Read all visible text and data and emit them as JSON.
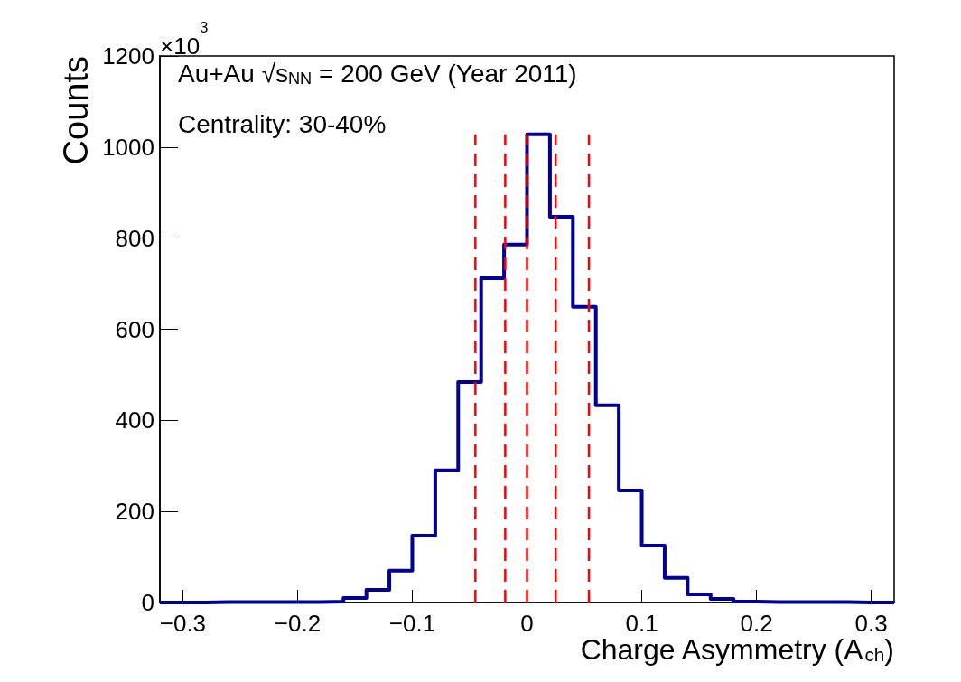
{
  "chart_data": {
    "type": "histogram",
    "xlabel": "Charge Asymmetry (A$_{ch}$)",
    "ylabel": "Counts",
    "annotations": [
      "×10$^{3}$",
      "Au+Au √s$_{NN}$ = 200 GeV (Year 2011)",
      "Centrality: 30-40%"
    ],
    "bins": [
      -0.32,
      -0.3,
      -0.28,
      -0.26,
      -0.24,
      -0.22,
      -0.2,
      -0.18,
      -0.16,
      -0.14,
      -0.12,
      -0.1,
      -0.08,
      -0.06,
      -0.04,
      -0.02,
      0,
      0.02,
      0.04,
      0.06,
      0.08,
      0.1,
      0.12,
      0.14,
      0.16,
      0.18,
      0.2,
      0.22,
      0.24,
      0.26,
      0.28,
      0.3,
      0.32
    ],
    "series": [
      {
        "color": "#000099",
        "values": [
          0,
          0,
          1,
          1,
          1,
          1,
          1,
          2,
          10,
          28,
          70,
          147,
          290,
          484,
          712,
          786,
          1028,
          847,
          649,
          433,
          246,
          125,
          54,
          18,
          8,
          2,
          1,
          1,
          1,
          1,
          0,
          0
        ]
      }
    ],
    "xlim": [
      -0.32,
      0.32
    ],
    "xticks": [
      {
        "value": -0.3,
        "label": "−0.3"
      },
      {
        "value": -0.2,
        "label": "−0.2"
      },
      {
        "value": -0.1,
        "label": "−0.1"
      },
      0,
      0.1,
      0.2,
      0.3
    ],
    "ylim": [
      0,
      1200
    ],
    "yticks": [
      0,
      200,
      400,
      600,
      800,
      1000,
      1200
    ],
    "ref_lines": [
      {
        "axis": "x",
        "value": -0.045,
        "color": "#ff0000",
        "line_style": "dashed"
      },
      {
        "axis": "x",
        "value": -0.019,
        "color": "#ff0000",
        "line_style": "dashed"
      },
      {
        "axis": "x",
        "value": 0.0,
        "color": "#ff0000",
        "line_style": "dashed"
      },
      {
        "axis": "x",
        "value": 0.025,
        "color": "#ff0000",
        "line_style": "dashed"
      },
      {
        "axis": "x",
        "value": 0.054,
        "color": "#ff0000",
        "line_style": "dashed"
      }
    ],
    "grid": false
  }
}
